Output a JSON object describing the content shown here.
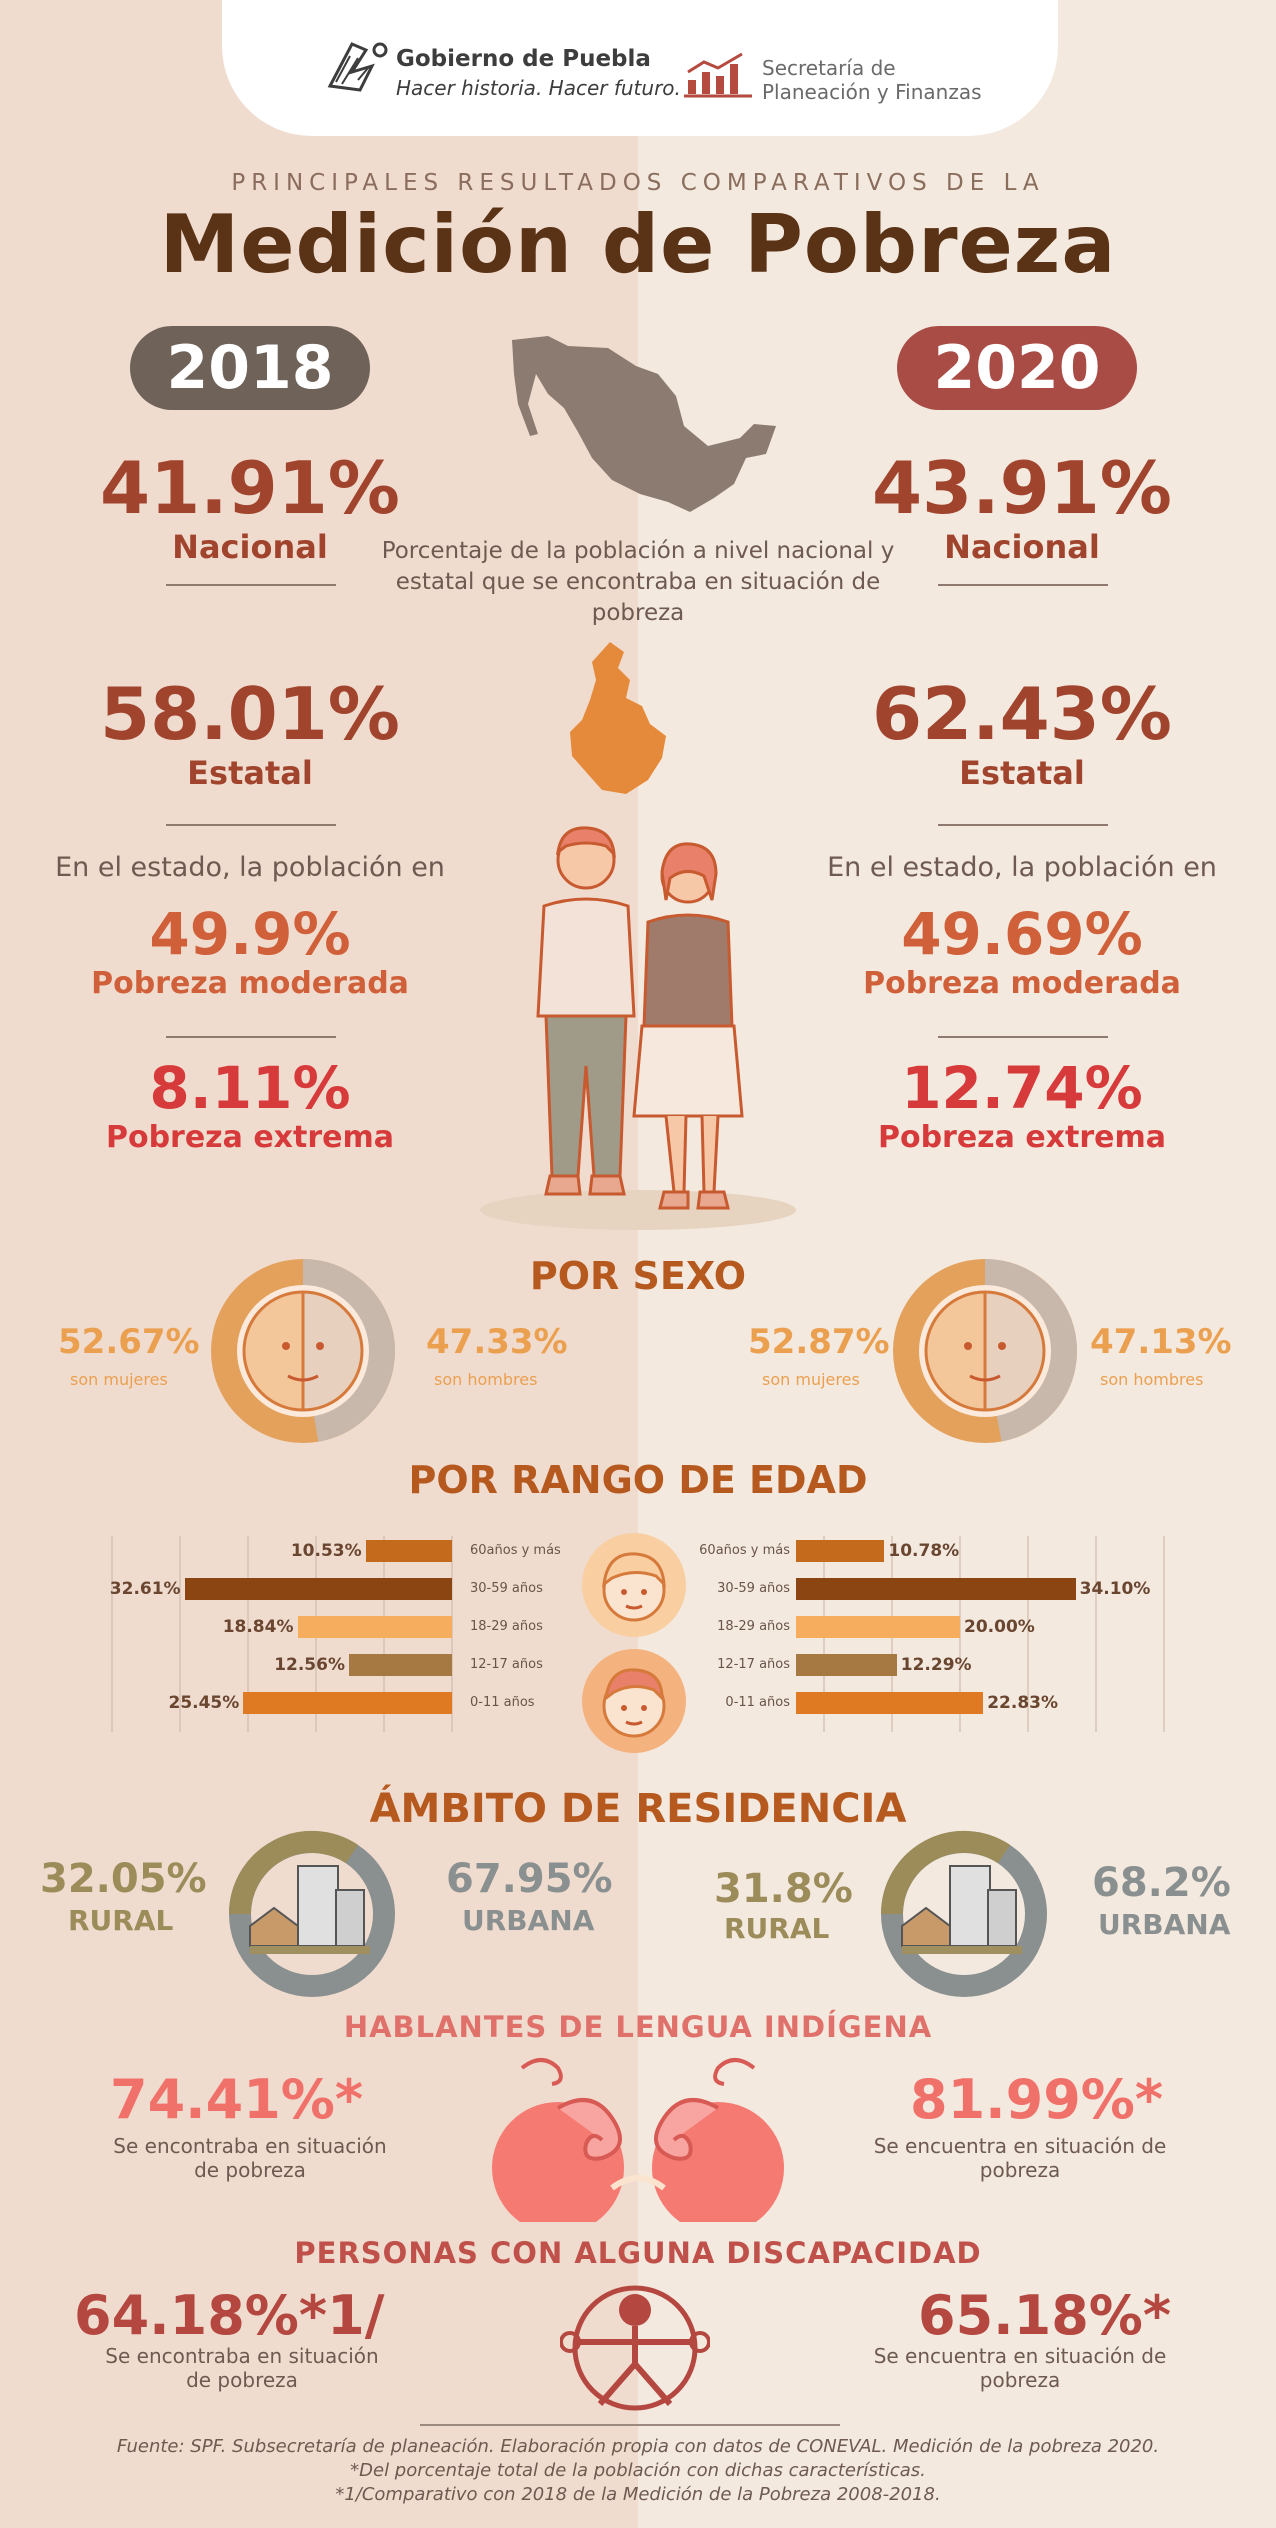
{
  "header": {
    "gov_name": "Gobierno de Puebla",
    "gov_slogan": "Hacer historia. Hacer futuro.",
    "spf_line1": "Secretaría de",
    "spf_line2": "Planeación y Finanzas"
  },
  "title": {
    "subtitle": "PRINCIPALES RESULTADOS COMPARATIVOS DE LA",
    "main": "Medición de Pobreza"
  },
  "years": {
    "left": "2018",
    "right": "2020"
  },
  "nacional": {
    "left_pct": "41.91%",
    "right_pct": "43.91%",
    "label": "Nacional"
  },
  "center_description": "Porcentaje de la población a nivel nacional y estatal que se encontraba en situación de pobreza",
  "estatal": {
    "left_pct": "58.01%",
    "right_pct": "62.43%",
    "label": "Estatal"
  },
  "estado": {
    "intro": "En el estado, la población en",
    "mod_left": "49.9%",
    "mod_right": "49.69%",
    "mod_label": "Pobreza moderada",
    "ext_left": "8.11%",
    "ext_right": "12.74%",
    "ext_label": "Pobreza extrema"
  },
  "sexo": {
    "heading": "POR SEXO",
    "left_women": "52.67%",
    "left_men": "47.33%",
    "right_women": "52.87%",
    "right_men": "47.13%",
    "women_label": "son mujeres",
    "men_label": "son hombres",
    "left_women_fraction": 0.5267,
    "right_women_fraction": 0.5287
  },
  "edad": {
    "heading": "POR RANGO DE EDAD",
    "rows": [
      {
        "label_left": "60años y más",
        "label_right": "60años y más",
        "left": 10.53,
        "left_txt": "10.53%",
        "right": 10.78,
        "right_txt": "10.78%",
        "color": "#c46a1c"
      },
      {
        "label_left": "30-59 años",
        "label_right": "30-59 años",
        "left": 32.61,
        "left_txt": "32.61%",
        "right": 34.1,
        "right_txt": "34.10%",
        "color": "#8b4513"
      },
      {
        "label_left": "18-29 años",
        "label_right": "18-29 años",
        "left": 18.84,
        "left_txt": "18.84%",
        "right": 20.0,
        "right_txt": "20.00%",
        "color": "#f6ad5e"
      },
      {
        "label_left": "12-17 años",
        "label_right": "12-17 años",
        "left": 12.56,
        "left_txt": "12.56%",
        "right": 12.29,
        "right_txt": "12.29%",
        "color": "#a67842"
      },
      {
        "label_left": "0-11 años",
        "label_right": "0-11 años",
        "left": 25.45,
        "left_txt": "25.45%",
        "right": 22.83,
        "right_txt": "22.83%",
        "color": "#e07a22"
      }
    ]
  },
  "residencia": {
    "heading": "ÁMBITO DE RESIDENCIA",
    "left_rural": "32.05%",
    "left_urbana": "67.95%",
    "right_rural": "31.8%",
    "right_urbana": "68.2%",
    "rural_label": "RURAL",
    "urbana_label": "URBANA"
  },
  "indigena": {
    "heading": "HABLANTES DE LENGUA INDÍGENA",
    "left_pct": "74.41%*",
    "right_pct": "81.99%*",
    "left_txt": "Se encontraba en situación de pobreza",
    "right_txt": "Se encuentra en situación de pobreza"
  },
  "discapacidad": {
    "heading": "PERSONAS CON ALGUNA DISCAPACIDAD",
    "left_pct": "64.18%*1/",
    "right_pct": "65.18%*",
    "left_txt": "Se encontraba en situación de pobreza",
    "right_txt": "Se encuentra en situación de pobreza"
  },
  "footer": {
    "line1": "Fuente: SPF. Subsecretaría de planeación. Elaboración propia con datos de CONEVAL. Medición de la pobreza 2020.",
    "line2": "*Del porcentaje total de la población con dichas características.",
    "line3": "*1/Comparativo con 2018 de la Medición de la Pobreza 2008-2018."
  }
}
